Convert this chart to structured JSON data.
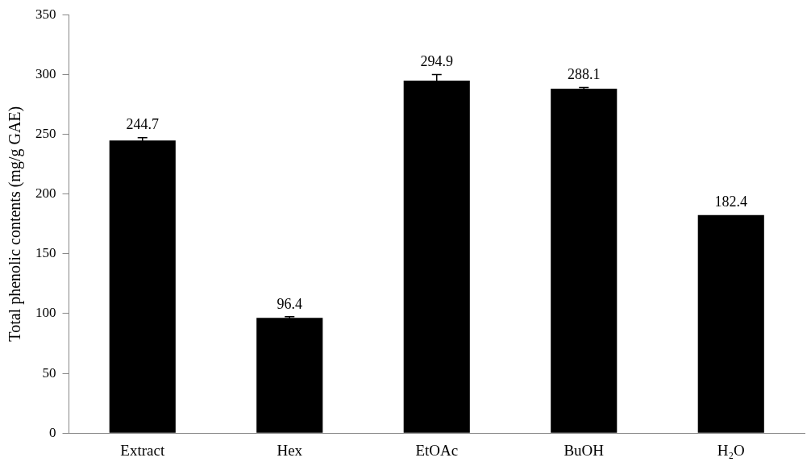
{
  "chart_data": {
    "type": "bar",
    "ylabel": "Total phenolic contents (mg/g GAE)",
    "categories": [
      "Extract",
      "Hex",
      "EtOAc",
      "BuOH",
      "H₂O"
    ],
    "values": [
      244.7,
      96.4,
      294.9,
      288.1,
      182.4
    ],
    "errors": [
      2.5,
      1,
      5,
      1,
      null
    ],
    "color": "#000000",
    "ylim": [
      0,
      350
    ],
    "yticks": [
      0,
      50,
      100,
      150,
      200,
      250,
      300,
      350
    ],
    "grid": false,
    "data_labels": true
  }
}
